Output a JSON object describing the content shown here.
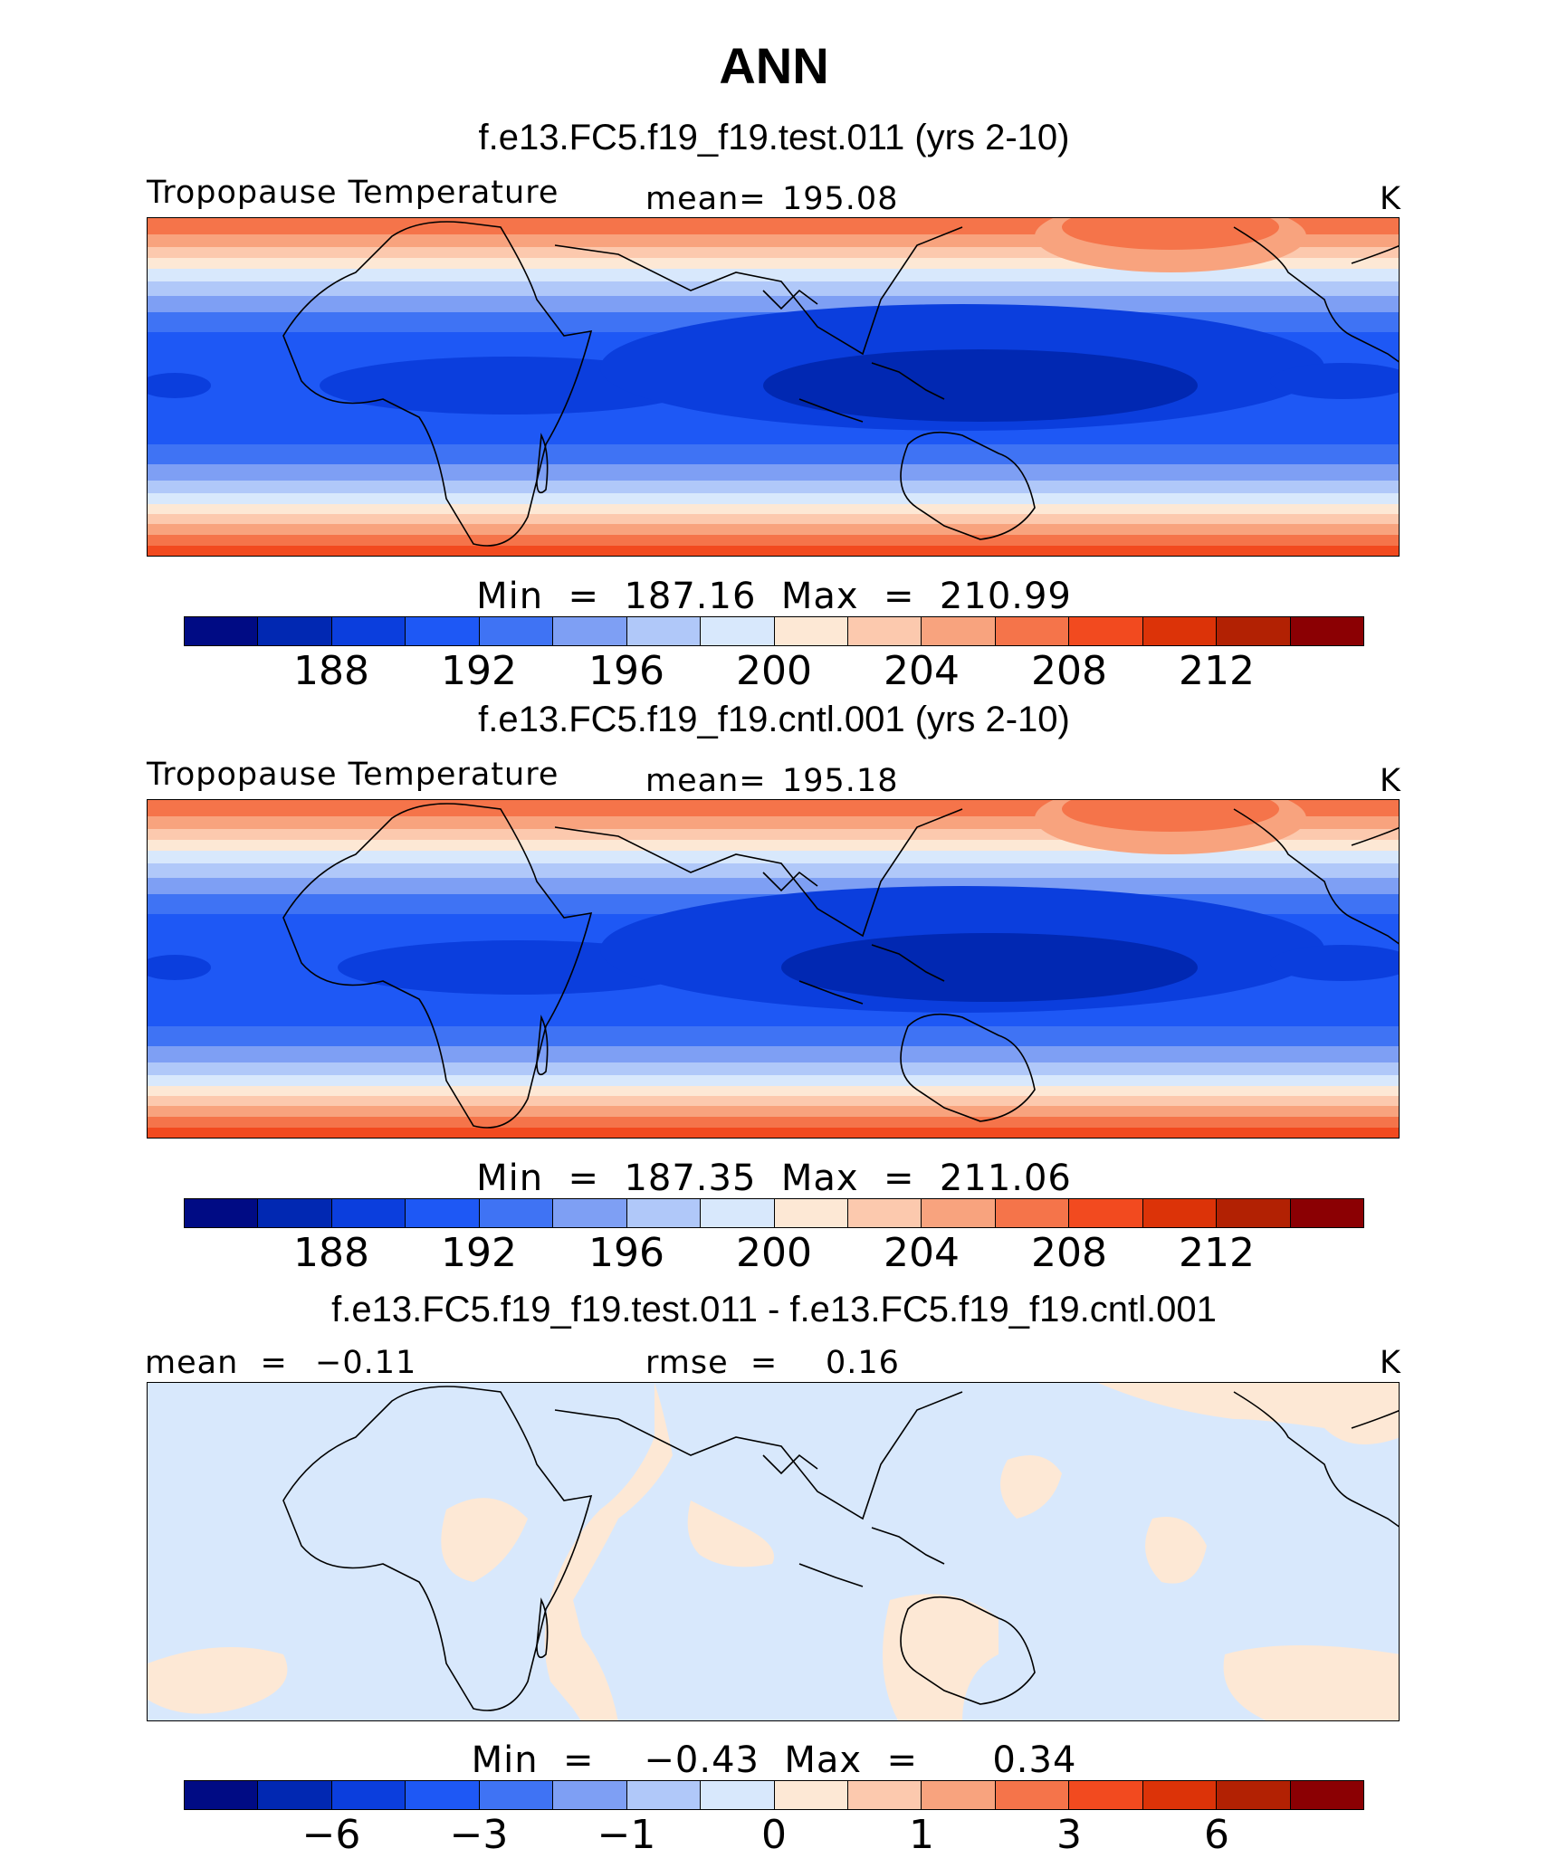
{
  "figure": {
    "title": "ANN",
    "units": "K",
    "palette": [
      "#000b84",
      "#0128b2",
      "#0b3edd",
      "#1e58f5",
      "#3f73f4",
      "#7e9ff4",
      "#b0c8f9",
      "#d8e8fc",
      "#fde8d5",
      "#fcc9ae",
      "#f8a37e",
      "#f5744a",
      "#f24a1f",
      "#dc3308",
      "#b22103",
      "#8b0003"
    ]
  },
  "panels": [
    {
      "case_title": "f.e13.FC5.f19_f19.test.011 (yrs 2-10)",
      "variable": "Tropopause Temperature",
      "stat_label": "mean=",
      "stat_value": "195.08",
      "units": "K",
      "min_max": "Min  =  187.16  Max  =  210.99",
      "colorbar_ticks": [
        "188",
        "192",
        "196",
        "200",
        "204",
        "208",
        "212"
      ]
    },
    {
      "case_title": "f.e13.FC5.f19_f19.cntl.001 (yrs 2-10)",
      "variable": "Tropopause Temperature",
      "stat_label": "mean=",
      "stat_value": "195.18",
      "units": "K",
      "min_max": "Min  =  187.35  Max  =  211.06",
      "colorbar_ticks": [
        "188",
        "192",
        "196",
        "200",
        "204",
        "208",
        "212"
      ]
    },
    {
      "case_title": "f.e13.FC5.f19_f19.test.011 - f.e13.FC5.f19_f19.cntl.001",
      "mean_label": "mean  =",
      "mean_value": "−0.11",
      "rmse_label": "rmse  =",
      "rmse_value": "0.16",
      "units": "K",
      "min_max": "Min  =    −0.43  Max  =      0.34",
      "colorbar_ticks": [
        "−6",
        "−3",
        "−1",
        "0",
        "1",
        "3",
        "6"
      ]
    }
  ]
}
